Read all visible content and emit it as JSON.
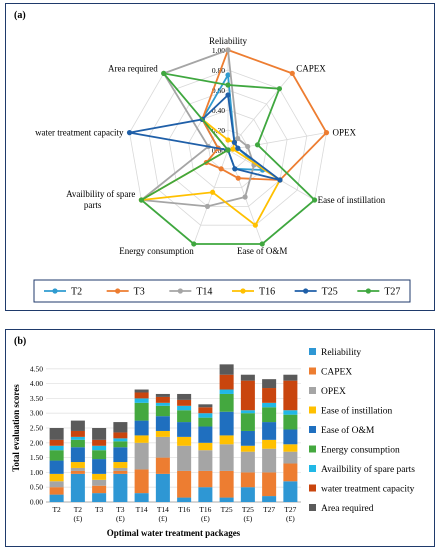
{
  "chart_data": [
    {
      "type": "radar",
      "panel_label": "(a)",
      "axes": [
        "Reliability",
        "CAPEX",
        "OPEX",
        "Ease of instillation",
        "Ease of O&M",
        "Energy consumption",
        "Availbility of spare parts",
        "water treatment capacity",
        "Area required"
      ],
      "rticks": [
        "0.00",
        "0.20",
        "0.40",
        "0.60",
        "0.80",
        "1.00"
      ],
      "rlim": [
        0,
        1
      ],
      "legend_position": "bottom",
      "series": [
        {
          "name": "T2",
          "color": "#2f9bd0",
          "values": [
            0.75,
            0.1,
            0.1,
            0.4,
            0.2,
            0.0,
            0.0,
            0.1,
            0.4
          ]
        },
        {
          "name": "T3",
          "color": "#ed7d31",
          "values": [
            1.0,
            1.0,
            1.0,
            0.6,
            0.3,
            0.2,
            0.25,
            0.1,
            0.4
          ]
        },
        {
          "name": "T14",
          "color": "#a5a5a5",
          "values": [
            1.0,
            0.15,
            0.2,
            0.3,
            0.5,
            0.6,
            1.0,
            0.2,
            1.0
          ]
        },
        {
          "name": "T16",
          "color": "#ffc000",
          "values": [
            0.1,
            0.1,
            0.05,
            0.6,
            0.8,
            0.45,
            1.0,
            0.0,
            0.4
          ]
        },
        {
          "name": "T25",
          "color": "#1f5fa8",
          "values": [
            0.55,
            0.1,
            0.1,
            0.6,
            0.2,
            0.0,
            0.0,
            1.0,
            0.4
          ]
        },
        {
          "name": "T27",
          "color": "#3fa73f",
          "values": [
            0.65,
            0.8,
            0.3,
            1.0,
            1.0,
            1.0,
            1.0,
            0.0,
            1.0
          ]
        }
      ]
    },
    {
      "type": "stacked-bar",
      "panel_label": "(b)",
      "ylabel": "Total evaluation scores",
      "xlabel": "Optimal water treatment packages",
      "ylim": [
        0,
        5
      ],
      "yticks": [
        "0.00",
        "0.50",
        "1.00",
        "1.50",
        "2.00",
        "2.50",
        "3.00",
        "3.50",
        "4.00",
        "4.50"
      ],
      "categories": [
        {
          "name": "T2",
          "sub": ""
        },
        {
          "name": "T2",
          "sub": "(£)"
        },
        {
          "name": "T3",
          "sub": ""
        },
        {
          "name": "T3",
          "sub": "(£)"
        },
        {
          "name": "T14",
          "sub": ""
        },
        {
          "name": "T14",
          "sub": "(£)"
        },
        {
          "name": "T16",
          "sub": ""
        },
        {
          "name": "T16",
          "sub": "(£)"
        },
        {
          "name": "T25",
          "sub": ""
        },
        {
          "name": "T25",
          "sub": "(£)"
        },
        {
          "name": "T27",
          "sub": ""
        },
        {
          "name": "T27",
          "sub": "(£)"
        }
      ],
      "legend_position": "right",
      "series": [
        {
          "name": "Reliability",
          "color": "#2e97d4",
          "values": [
            0.25,
            0.95,
            0.3,
            0.95,
            0.3,
            0.95,
            0.15,
            0.5,
            0.15,
            0.5,
            0.2,
            0.7
          ]
        },
        {
          "name": "CAPEX",
          "color": "#ed7d31",
          "values": [
            0.25,
            0.1,
            0.25,
            0.1,
            0.8,
            0.55,
            0.9,
            0.55,
            0.9,
            0.5,
            0.8,
            0.6
          ]
        },
        {
          "name": "OPEX",
          "color": "#a5a5a5",
          "values": [
            0.2,
            0.1,
            0.2,
            0.1,
            0.9,
            0.7,
            0.85,
            0.7,
            0.9,
            0.7,
            0.8,
            0.4
          ]
        },
        {
          "name": "Ease of instillation",
          "color": "#ffc000",
          "values": [
            0.25,
            0.2,
            0.2,
            0.2,
            0.25,
            0.2,
            0.3,
            0.25,
            0.3,
            0.2,
            0.3,
            0.25
          ]
        },
        {
          "name": "Ease of O&M",
          "color": "#1f6fbf",
          "values": [
            0.45,
            0.5,
            0.5,
            0.5,
            0.5,
            0.5,
            0.5,
            0.55,
            0.8,
            0.5,
            0.6,
            0.5
          ]
        },
        {
          "name": "Energy consumption",
          "color": "#44a83f",
          "values": [
            0.35,
            0.25,
            0.3,
            0.2,
            0.6,
            0.35,
            0.4,
            0.3,
            0.6,
            0.6,
            0.5,
            0.5
          ]
        },
        {
          "name": "Availbility of spare parts",
          "color": "#21b8e6",
          "values": [
            0.15,
            0.1,
            0.15,
            0.1,
            0.15,
            0.1,
            0.15,
            0.15,
            0.15,
            0.1,
            0.15,
            0.15
          ]
        },
        {
          "name": "water treatment capacity",
          "color": "#c9450e",
          "values": [
            0.2,
            0.2,
            0.2,
            0.2,
            0.2,
            0.2,
            0.2,
            0.2,
            0.5,
            1.0,
            0.5,
            1.0
          ]
        },
        {
          "name": "Area required",
          "color": "#5a5a5a",
          "values": [
            0.4,
            0.35,
            0.4,
            0.35,
            0.1,
            0.1,
            0.2,
            0.1,
            0.35,
            0.2,
            0.3,
            0.2
          ]
        }
      ]
    }
  ]
}
